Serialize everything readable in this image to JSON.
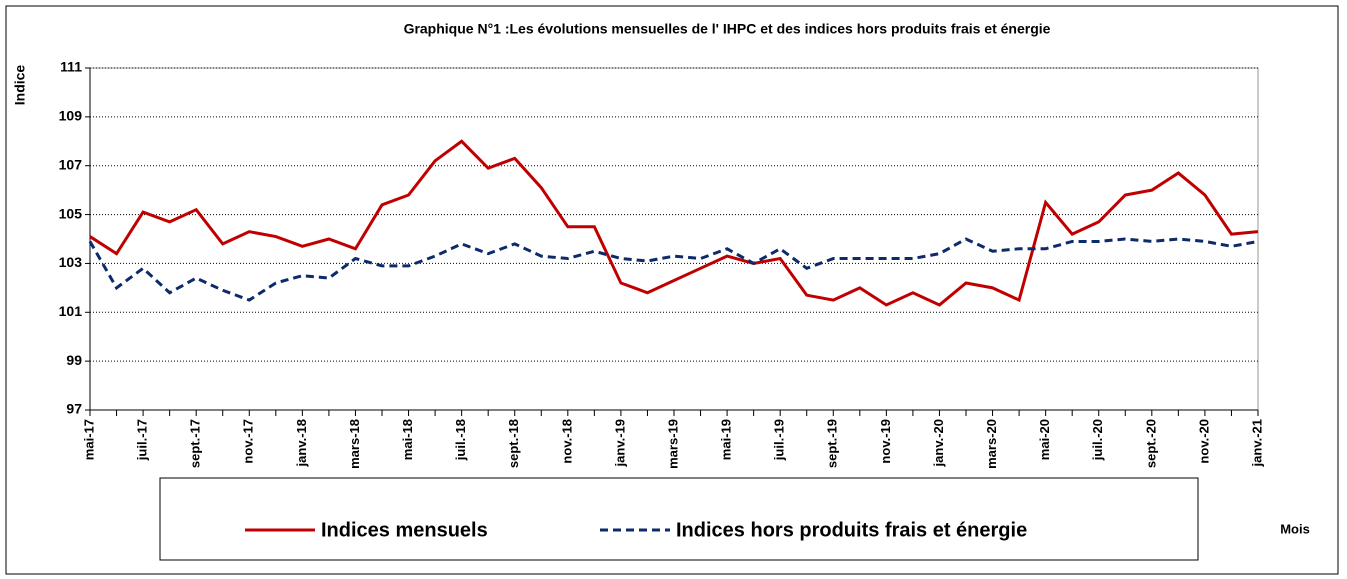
{
  "chart_data": {
    "type": "line",
    "title": "Graphique N°1 :Les évolutions mensuelles de l' IHPC et des indices  hors produits frais et énergie",
    "y_label": "Indice",
    "x_label": "Mois",
    "categories": [
      "mai-17",
      null,
      "juil.-17",
      null,
      "sept.-17",
      null,
      "nov.-17",
      null,
      "janv.-18",
      null,
      "mars-18",
      null,
      "mai-18",
      null,
      "juil.-18",
      null,
      "sept.-18",
      null,
      "nov.-18",
      null,
      "janv.-19",
      null,
      "mars-19",
      null,
      "mai-19",
      null,
      "juil.-19",
      null,
      "sept.-19",
      null,
      "nov.-19",
      null,
      "janv.-20",
      null,
      "mars-20",
      null,
      "mai-20",
      null,
      "juil.-20",
      null,
      "sept.-20",
      null,
      "nov.-20",
      null,
      "janv.-21"
    ],
    "series": [
      {
        "name": "Indices mensuels",
        "color": "#c00000",
        "line_style": "solid",
        "values": [
          104.1,
          103.4,
          105.1,
          104.7,
          105.2,
          103.8,
          104.3,
          104.1,
          103.7,
          104.0,
          103.6,
          105.4,
          105.8,
          107.2,
          108.0,
          106.9,
          107.3,
          106.1,
          104.5,
          104.5,
          102.2,
          101.8,
          102.3,
          102.8,
          103.3,
          103.0,
          103.2,
          101.7,
          101.5,
          102.0,
          101.3,
          101.8,
          101.3,
          102.2,
          102.0,
          101.5,
          105.5,
          104.2,
          104.7,
          105.8,
          106.0,
          106.7,
          105.8,
          104.2,
          104.3
        ]
      },
      {
        "name": "Indices  hors produits frais et énergie",
        "color": "#0d2a6b",
        "line_style": "dashed",
        "values": [
          103.9,
          102.0,
          102.8,
          101.8,
          102.4,
          101.9,
          101.5,
          102.2,
          102.5,
          102.4,
          103.2,
          102.9,
          102.9,
          103.3,
          103.8,
          103.4,
          103.8,
          103.3,
          103.2,
          103.5,
          103.2,
          103.1,
          103.3,
          103.2,
          103.6,
          103.0,
          103.6,
          102.8,
          103.2,
          103.2,
          103.2,
          103.2,
          103.4,
          104.0,
          103.5,
          103.6,
          103.6,
          103.9,
          103.9,
          104.0,
          103.9,
          104.0,
          103.9,
          103.7,
          103.9
        ]
      }
    ],
    "ylim": [
      97,
      111
    ],
    "yticks": [
      97,
      99,
      101,
      103,
      105,
      107,
      109,
      111
    ],
    "grid": true,
    "legend": "bottom"
  }
}
